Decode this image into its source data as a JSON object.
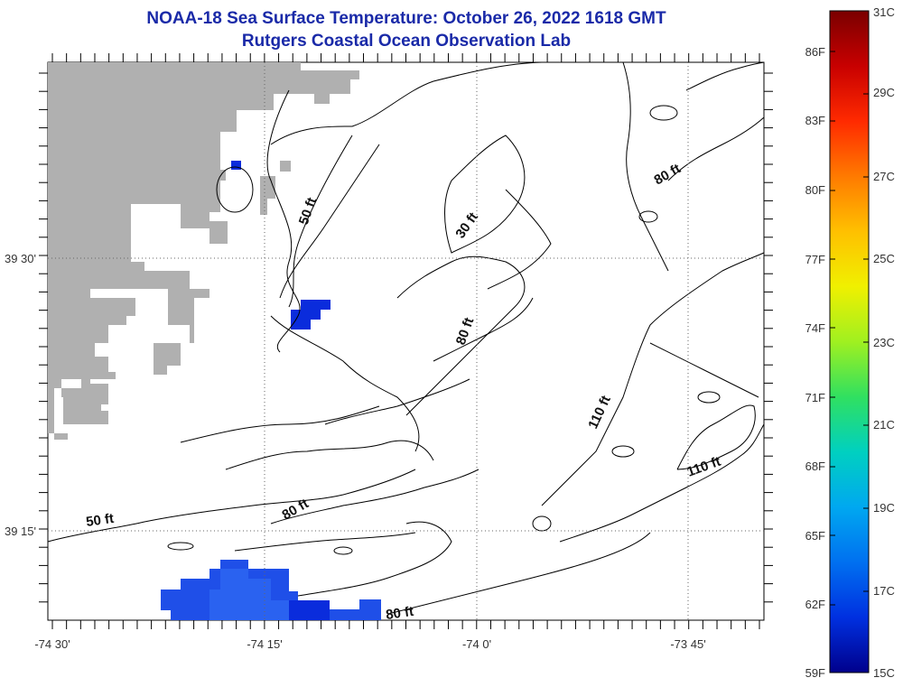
{
  "title": {
    "line1": "NOAA-18 Sea Surface Temperature:  October 26, 2022 1618 GMT",
    "line2": "Rutgers Coastal Ocean Observation Lab"
  },
  "colors": {
    "title": "#1a2aa8",
    "land": "#b0b0b0",
    "sst_dark": "#0a2cdc",
    "sst_mid": "#1f4fe8",
    "sst_light": "#2a62f0"
  },
  "map": {
    "lon_labels": [
      "-74 30'",
      "-74 15'",
      "-74 0'",
      "-73 45'"
    ],
    "lat_labels": [
      "39 30'",
      "39 15'"
    ],
    "contour_labels": [
      "50 ft",
      "30 ft",
      "80 ft",
      "80 ft",
      "110 ft",
      "110 ft",
      "50 ft",
      "80 ft",
      "80 ft"
    ]
  },
  "colorbar": {
    "celsius": [
      "31C",
      "29C",
      "27C",
      "25C",
      "23C",
      "21C",
      "19C",
      "17C",
      "15C"
    ],
    "fahrenheit": [
      "86F",
      "83F",
      "80F",
      "77F",
      "74F",
      "71F",
      "68F",
      "65F",
      "62F",
      "59F"
    ],
    "stops": [
      "#7a0000",
      "#c80000",
      "#ff2a00",
      "#ff7a00",
      "#ffc000",
      "#f0f000",
      "#a0f020",
      "#30e060",
      "#00d0c0",
      "#00a8f0",
      "#0070f0",
      "#0030e0",
      "#00008c"
    ]
  }
}
